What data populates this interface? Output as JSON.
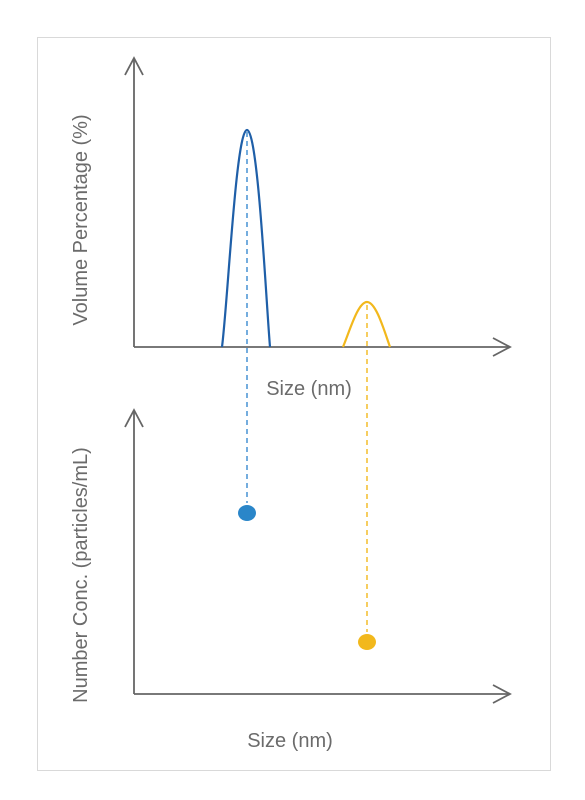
{
  "top_panel": {
    "ylabel": "Volume Percentage (%)",
    "xlabel": "Size (nm)"
  },
  "bottom_panel": {
    "ylabel": "Number Conc. (particles/mL)",
    "xlabel": "Size (nm)"
  },
  "colors": {
    "axis": "#666666",
    "frame": "#d9d9d9",
    "peak_small": "#1f5fa8",
    "peak_large": "#f2b81c",
    "dot_small": "#2a86c9",
    "dot_large": "#f2b81c",
    "connector_small": "#3a8ad0",
    "connector_large": "#f2b81c"
  }
}
